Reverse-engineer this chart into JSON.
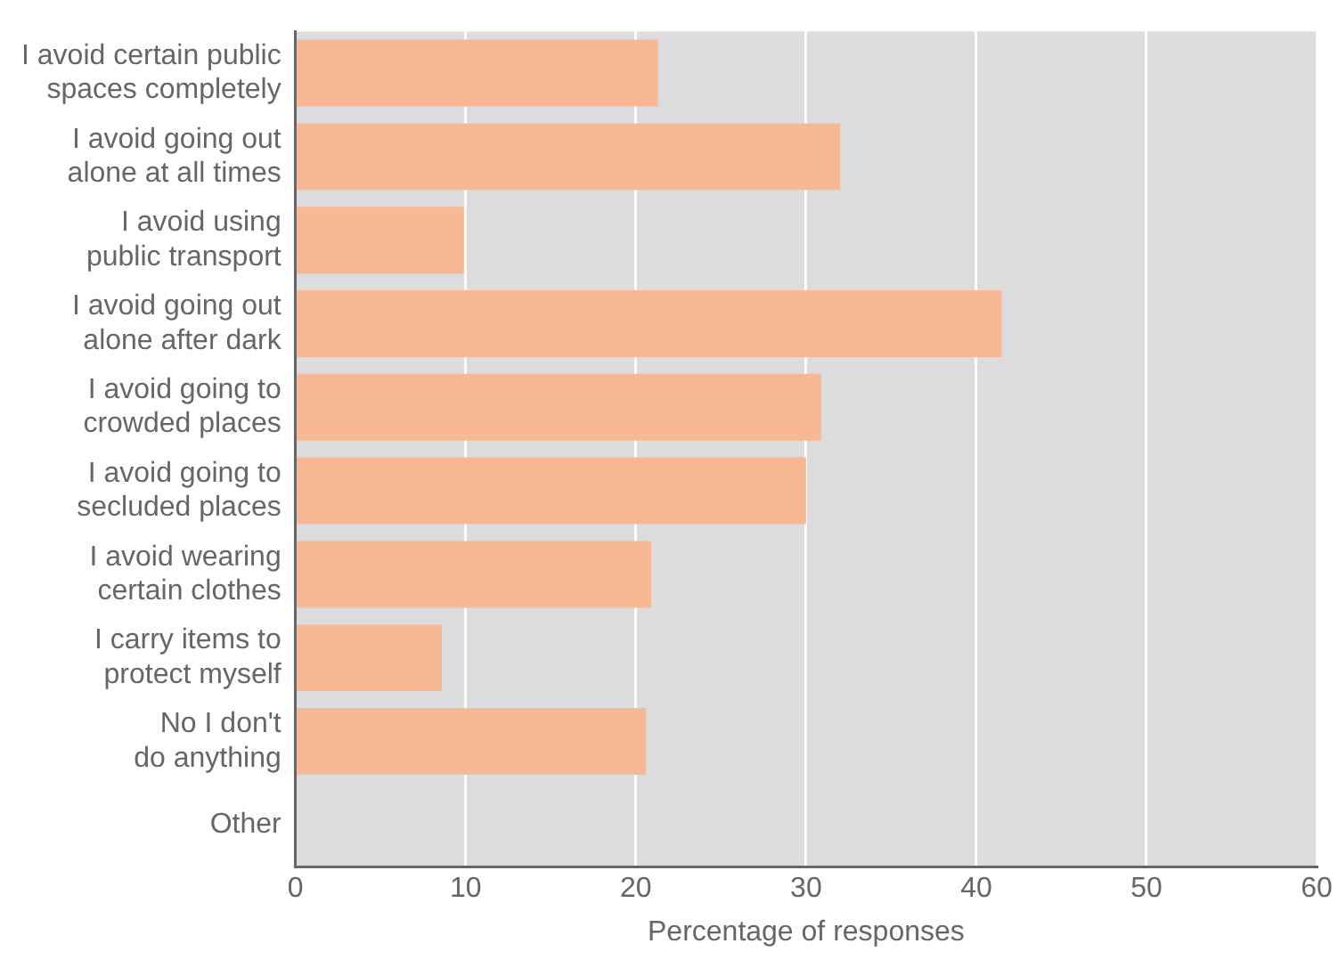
{
  "chart_data": {
    "type": "bar",
    "orientation": "horizontal",
    "xlabel": "Percentage of responses",
    "categories": [
      "I avoid certain public\nspaces completely",
      "I avoid going out\nalone at all times",
      "I avoid using\npublic transport",
      "I avoid going out\nalone after dark",
      "I avoid going to\ncrowded places",
      "I avoid going to\nsecluded places",
      "I avoid wearing\ncertain clothes",
      "I carry items to\nprotect myself",
      "No I don't\ndo anything",
      "Other"
    ],
    "values": [
      21.3,
      32.0,
      9.9,
      41.5,
      30.9,
      30.0,
      20.9,
      8.6,
      20.6,
      0
    ],
    "color": "#f8b894",
    "xlim": [
      0,
      60
    ],
    "xticks": [
      0,
      10,
      20,
      30,
      40,
      50,
      60
    ],
    "grid": "x"
  }
}
